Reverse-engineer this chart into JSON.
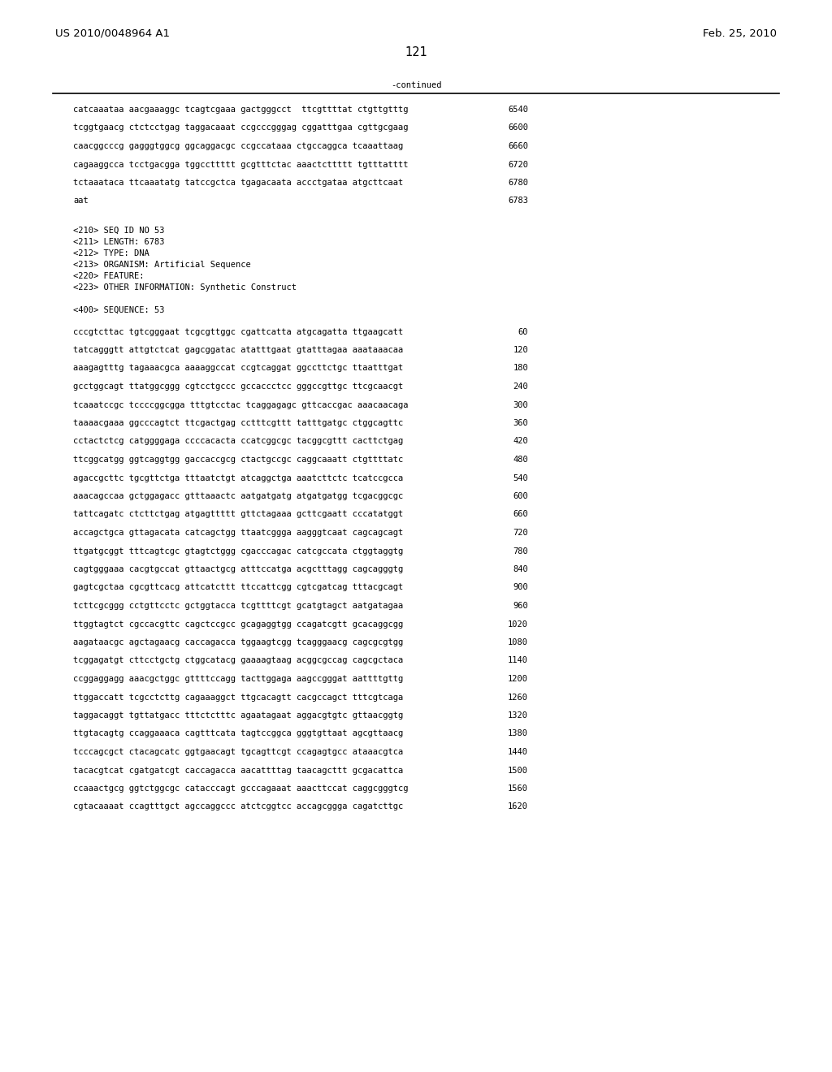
{
  "header_left": "US 2010/0048964 A1",
  "header_right": "Feb. 25, 2010",
  "page_number": "121",
  "continued_label": "-continued",
  "background_color": "#ffffff",
  "text_color": "#000000",
  "font_size_header": 9.5,
  "font_size_body": 7.5,
  "font_size_page": 10.5,
  "sequence_lines_top": [
    [
      "catcaaataa aacgaaaggc tcagtcgaaa gactgggcct  ttcgttttat ctgttgtttg",
      "6540"
    ],
    [
      "tcggtgaacg ctctcctgag taggacaaat ccgcccgggag cggatttgaa cgttgcgaag",
      "6600"
    ],
    [
      "caacggcccg gagggtggcg ggcaggacgc ccgccataaa ctgccaggca tcaaattaag",
      "6660"
    ],
    [
      "cagaaggcca tcctgacgga tggccttttt gcgtttctac aaactcttttt tgtttatttt",
      "6720"
    ],
    [
      "tctaaataca ttcaaatatg tatccgctca tgagacaata accctgataa atgcttcaat",
      "6780"
    ],
    [
      "aat",
      "6783"
    ]
  ],
  "metadata_lines": [
    "<210> SEQ ID NO 53",
    "<211> LENGTH: 6783",
    "<212> TYPE: DNA",
    "<213> ORGANISM: Artificial Sequence",
    "<220> FEATURE:",
    "<223> OTHER INFORMATION: Synthetic Construct"
  ],
  "sequence_header": "<400> SEQUENCE: 53",
  "sequence_lines_main": [
    [
      "cccgtcttac tgtcgggaat tcgcgttggc cgattcatta atgcagatta ttgaagcatt",
      "60"
    ],
    [
      "tatcagggtt attgtctcat gagcggatac atatttgaat gtatttagaa aaataaacaa",
      "120"
    ],
    [
      "aaagagtttg tagaaacgca aaaaggccat ccgtcaggat ggccttctgc ttaatttgat",
      "180"
    ],
    [
      "gcctggcagt ttatggcggg cgtcctgccc gccaccctcc gggccgttgc ttcgcaacgt",
      "240"
    ],
    [
      "tcaaatccgc tccccggcgga tttgtcctac tcaggagagc gttcaccgac aaacaacaga",
      "300"
    ],
    [
      "taaaacgaaa ggcccagtct ttcgactgag cctttcgttt tatttgatgc ctggcagttc",
      "360"
    ],
    [
      "cctactctcg catggggaga ccccacacta ccatcggcgc tacggcgttt cacttctgag",
      "420"
    ],
    [
      "ttcggcatgg ggtcaggtgg gaccaccgcg ctactgccgc caggcaaatt ctgttttatc",
      "480"
    ],
    [
      "agaccgcttc tgcgttctga tttaatctgt atcaggctga aaatcttctc tcatccgcca",
      "540"
    ],
    [
      "aaacagccaa gctggagacc gtttaaactc aatgatgatg atgatgatgg tcgacggcgc",
      "600"
    ],
    [
      "tattcagatc ctcttctgag atgagttttt gttctagaaa gcttcgaatt cccatatggt",
      "660"
    ],
    [
      "accagctgca gttagacata catcagctgg ttaatcggga aagggtcaat cagcagcagt",
      "720"
    ],
    [
      "ttgatgcggt tttcagtcgc gtagtctggg cgacccagac catcgccata ctggtaggtg",
      "780"
    ],
    [
      "cagtgggaaa cacgtgccat gttaactgcg atttccatga acgctttagg cagcagggtg",
      "840"
    ],
    [
      "gagtcgctaa cgcgttcacg attcatcttt ttccattcgg cgtcgatcag tttacgcagt",
      "900"
    ],
    [
      "tcttcgcggg cctgttcctc gctggtacca tcgttttcgt gcatgtagct aatgatagaa",
      "960"
    ],
    [
      "ttggtagtct cgccacgttc cagctccgcc gcagaggtgg ccagatcgtt gcacaggcgg",
      "1020"
    ],
    [
      "aagataacgc agctagaacg caccagacca tggaagtcgg tcagggaacg cagcgcgtgg",
      "1080"
    ],
    [
      "tcggagatgt cttcctgctg ctggcatacg gaaaagtaag acggcgccag cagcgctaca",
      "1140"
    ],
    [
      "ccggaggagg aaacgctggc gttttccagg tacttggaga aagccgggat aattttgttg",
      "1200"
    ],
    [
      "ttggaccatt tcgcctcttg cagaaaggct ttgcacagtt cacgccagct tttcgtcaga",
      "1260"
    ],
    [
      "taggacaggt tgttatgacc tttctctttc agaatagaat aggacgtgtc gttaacggtg",
      "1320"
    ],
    [
      "ttgtacagtg ccaggaaaca cagtttcata tagtccggca gggtgttaat agcgttaacg",
      "1380"
    ],
    [
      "tcccagcgct ctacagcatc ggtgaacagt tgcagttcgt ccagagtgcc ataaacgtca",
      "1440"
    ],
    [
      "tacacgtcat cgatgatcgt caccagacca aacattttag taacagcttt gcgacattca",
      "1500"
    ],
    [
      "ccaaactgcg ggtctggcgc catacccagt gcccagaaat aaacttccat caggcgggtcg",
      "1560"
    ],
    [
      "cgtacaaaat ccagtttgct agccaggccc atctcggtcc accagcggga cagatcttgc",
      "1620"
    ]
  ]
}
